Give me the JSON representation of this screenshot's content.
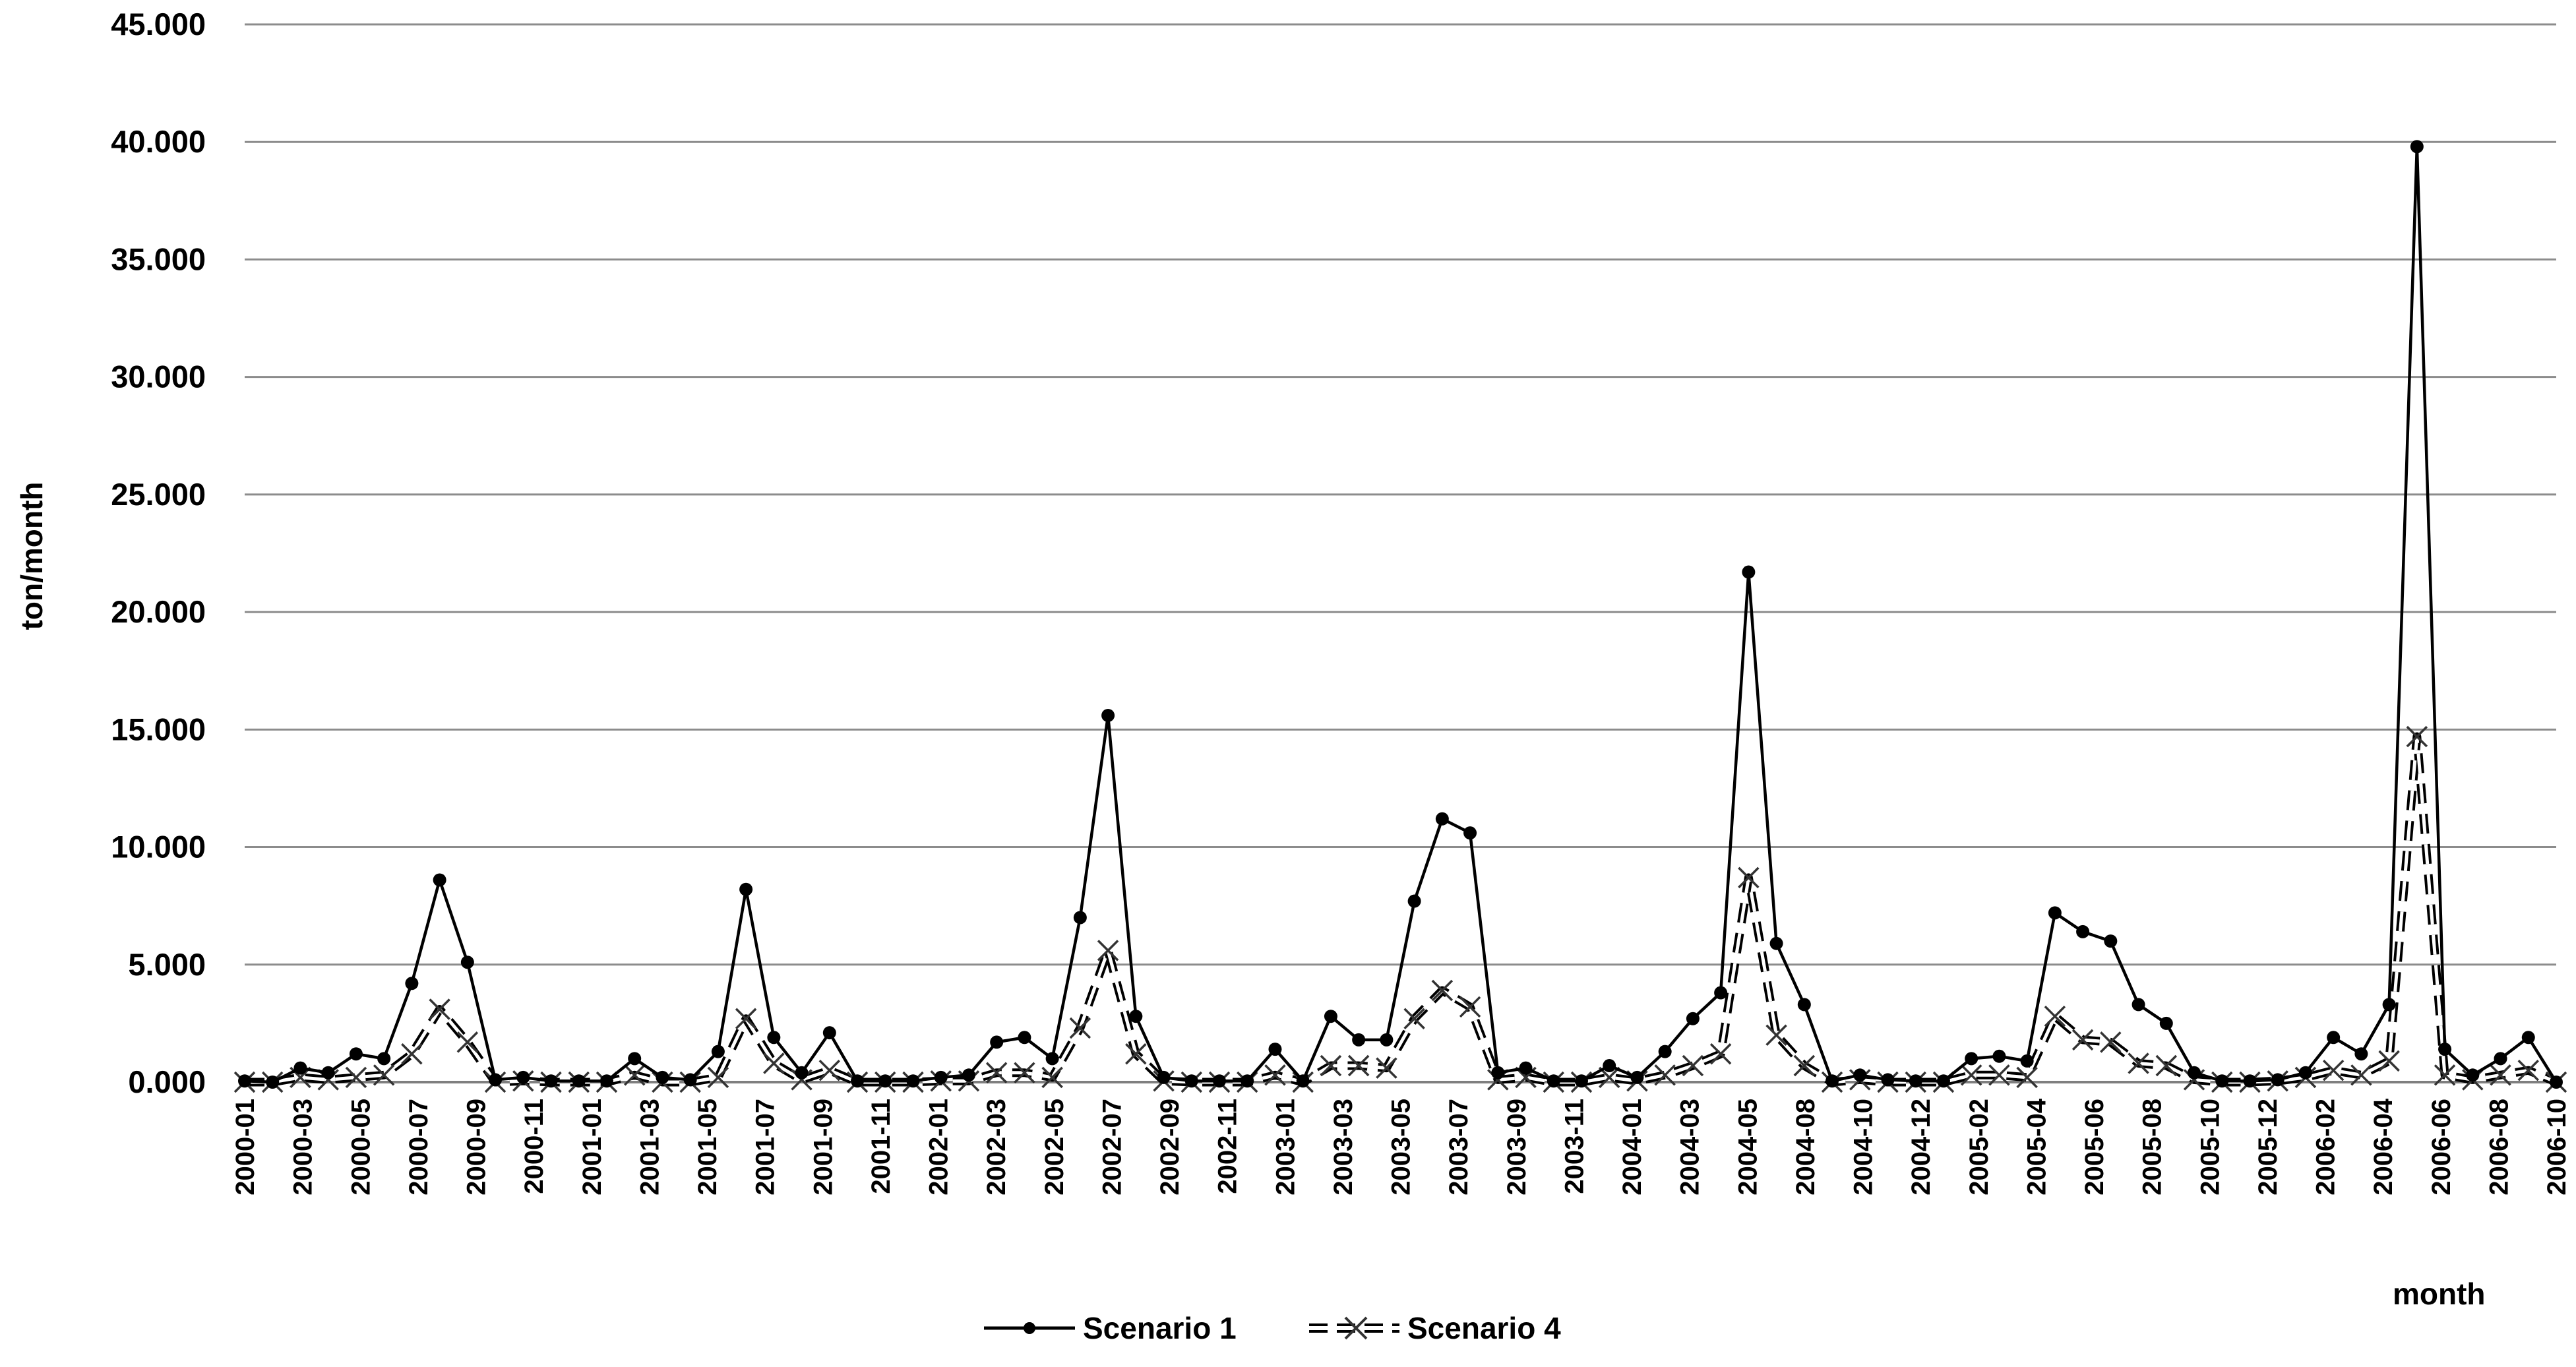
{
  "chart_data": {
    "type": "line",
    "xlabel": "month",
    "ylabel": "ton/month",
    "ylim": [
      0,
      45000
    ],
    "y_ticks": [
      0,
      5000,
      10000,
      15000,
      20000,
      25000,
      30000,
      35000,
      40000,
      45000
    ],
    "y_tick_labels": [
      "0.000",
      "5.000",
      "10.000",
      "15.000",
      "20.000",
      "25.000",
      "30.000",
      "35.000",
      "40.000",
      "45.000"
    ],
    "grid": "horizontal",
    "legend_position": "bottom",
    "x_tick_labels": [
      "2000-01",
      "2000-03",
      "2000-05",
      "2000-07",
      "2000-09",
      "2000-11",
      "2001-01",
      "2001-03",
      "2001-05",
      "2001-07",
      "2001-09",
      "2001-11",
      "2002-01",
      "2002-03",
      "2002-05",
      "2002-07",
      "2002-09",
      "2002-11",
      "2003-01",
      "2003-03",
      "2003-05",
      "2003-07",
      "2003-09",
      "2003-11",
      "2004-01",
      "2004-03",
      "2004-05",
      "2004-08",
      "2004-10",
      "2004-12",
      "2005-02",
      "2005-04",
      "2005-06",
      "2005-08",
      "2005-10",
      "2005-12",
      "2006-02",
      "2006-04",
      "2006-06",
      "2006-08",
      "2006-10"
    ],
    "series": [
      {
        "name": "Scenario 1",
        "style": "solid line with dot markers",
        "color": "#000000",
        "values": [
          50,
          0,
          600,
          400,
          1200,
          1000,
          4200,
          8600,
          5100,
          100,
          200,
          50,
          50,
          50,
          1000,
          200,
          100,
          1300,
          8200,
          1900,
          400,
          2100,
          50,
          50,
          50,
          200,
          300,
          1700,
          1900,
          1000,
          7000,
          15600,
          2800,
          200,
          50,
          50,
          50,
          1400,
          50,
          2800,
          1800,
          1800,
          7700,
          11200,
          10600,
          400,
          600,
          50,
          50,
          700,
          200,
          1300,
          2700,
          3800,
          21700,
          5900,
          3300,
          50,
          300,
          100,
          50,
          50,
          1000,
          1100,
          900,
          7200,
          6400,
          6000,
          3300,
          2500,
          400,
          50,
          50,
          100,
          400,
          1900,
          1200,
          3300,
          39800,
          1400,
          300,
          1000,
          1900,
          0
        ]
      },
      {
        "name": "Scenario 4",
        "style": "dashed line with x markers",
        "color": "#000000",
        "values": [
          0,
          0,
          200,
          100,
          200,
          300,
          1200,
          3100,
          1700,
          0,
          50,
          0,
          0,
          0,
          300,
          0,
          0,
          200,
          2700,
          800,
          100,
          500,
          0,
          0,
          0,
          50,
          50,
          400,
          400,
          200,
          2300,
          5600,
          1200,
          50,
          0,
          0,
          0,
          300,
          0,
          700,
          700,
          600,
          2700,
          3900,
          3200,
          100,
          200,
          0,
          0,
          200,
          50,
          300,
          700,
          1200,
          8700,
          2000,
          700,
          0,
          100,
          0,
          0,
          0,
          300,
          300,
          200,
          2800,
          1800,
          1700,
          800,
          700,
          100,
          0,
          0,
          50,
          200,
          500,
          300,
          900,
          14700,
          300,
          100,
          300,
          500,
          0
        ]
      }
    ]
  }
}
